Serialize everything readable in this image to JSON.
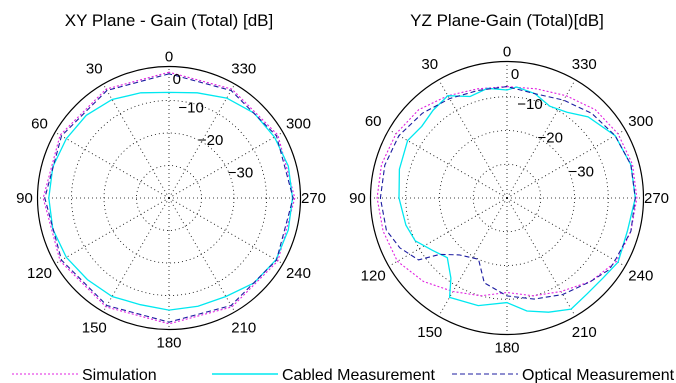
{
  "chart_data": [
    {
      "type": "polar",
      "title": "XY Plane - Gain (Total) [dB]",
      "angle_labels": [
        "0",
        "30",
        "60",
        "90",
        "120",
        "150",
        "180",
        "210",
        "240",
        "270",
        "300",
        "330"
      ],
      "radial_tick_labels": [
        "0",
        "−10",
        "−20",
        "−30"
      ],
      "radial_range_db": [
        -40,
        0
      ],
      "grid": true,
      "series": [
        {
          "name": "Simulation",
          "angles": [
            0,
            30,
            60,
            90,
            120,
            150,
            180,
            210,
            240,
            270,
            300,
            330
          ],
          "values": [
            -1.3,
            -1.3,
            -1.3,
            -1.3,
            -1.3,
            -1.3,
            -1.3,
            -1.3,
            -1.3,
            -1.3,
            -1.3,
            -1.3
          ]
        },
        {
          "name": "Cabled Measurement",
          "angles": [
            0,
            15,
            30,
            45,
            60,
            75,
            90,
            105,
            120,
            135,
            150,
            165,
            180,
            195,
            210,
            225,
            240,
            255,
            270,
            285,
            300,
            315,
            330,
            345
          ],
          "values": [
            -7.5,
            -6.5,
            -5,
            -4,
            -3.5,
            -3,
            -3,
            -3,
            -3.5,
            -4.5,
            -5,
            -6,
            -5.5,
            -5.5,
            -5,
            -3,
            -2,
            -2,
            -2,
            -2,
            -2.5,
            -3,
            -4.5,
            -6.5
          ]
        },
        {
          "name": "Optical Measurement",
          "angles": [
            0,
            30,
            60,
            90,
            120,
            150,
            180,
            210,
            240,
            270,
            300,
            330
          ],
          "values": [
            -1.8,
            -1.8,
            -1.8,
            -1.8,
            -1.8,
            -1.8,
            -1.8,
            -1.8,
            -1.8,
            -1.8,
            -1.8,
            -1.8
          ]
        }
      ]
    },
    {
      "type": "polar",
      "title": "YZ Plane-Gain (Total)[dB]",
      "angle_labels": [
        "0",
        "30",
        "60",
        "90",
        "120",
        "150",
        "180",
        "210",
        "240",
        "270",
        "300",
        "330"
      ],
      "radial_tick_labels": [
        "0",
        "−10",
        "−20",
        "−30"
      ],
      "radial_range_db": [
        -40,
        0
      ],
      "grid": true,
      "series": [
        {
          "name": "Simulation",
          "angles": [
            0,
            15,
            30,
            45,
            60,
            75,
            90,
            105,
            120,
            135,
            150,
            165,
            180,
            195,
            210,
            225,
            240,
            255,
            270,
            285,
            300,
            315,
            330,
            345
          ],
          "values": [
            -7,
            -6.5,
            -5,
            -3,
            -2,
            -1.5,
            -1.5,
            -2,
            -2.5,
            -5,
            -8,
            -10,
            -12,
            -10,
            -8,
            -5,
            -2.5,
            -2,
            -1.5,
            -1.5,
            -2,
            -3,
            -5,
            -6.5
          ]
        },
        {
          "name": "Cabled Measurement",
          "angles": [
            0,
            10,
            20,
            30,
            40,
            50,
            60,
            75,
            90,
            105,
            115,
            125,
            135,
            145,
            150,
            165,
            180,
            190,
            200,
            210,
            220,
            230,
            240,
            255,
            270,
            285,
            300,
            315,
            325,
            335,
            345,
            355
          ],
          "values": [
            -8,
            -7,
            -8,
            -5,
            -6,
            -7,
            -6,
            -7,
            -8,
            -9,
            -10,
            -13,
            -15,
            -11,
            -6,
            -7,
            -9,
            -6,
            -4,
            -2,
            -3,
            -3,
            -2,
            -3,
            -2,
            -2,
            -3,
            -6,
            -9,
            -10,
            -8,
            -7
          ]
        },
        {
          "name": "Optical Measurement",
          "angles": [
            0,
            15,
            30,
            45,
            60,
            75,
            90,
            105,
            115,
            125,
            130,
            140,
            155,
            165,
            180,
            195,
            210,
            225,
            235,
            240,
            255,
            270,
            285,
            300,
            315,
            330,
            345
          ],
          "values": [
            -7,
            -7,
            -6,
            -4.5,
            -3,
            -2.5,
            -2.5,
            -3,
            -5,
            -8,
            -14,
            -18,
            -20,
            -14,
            -11,
            -9,
            -7,
            -5,
            -3,
            -3,
            -2,
            -2,
            -2,
            -3,
            -4.5,
            -6.5,
            -8
          ]
        }
      ]
    }
  ],
  "legend": [
    {
      "label": "Simulation",
      "color": "#e020e0",
      "dash": "dotted"
    },
    {
      "label": "Cabled Measurement",
      "color": "#00e8f0",
      "dash": "solid"
    },
    {
      "label": "Optical Measurement",
      "color": "#1c1ca0",
      "dash": "dashed"
    }
  ],
  "colors": {
    "simulation": "#e020e0",
    "cabled": "#00e8f0",
    "optical": "#1c1ca0"
  }
}
